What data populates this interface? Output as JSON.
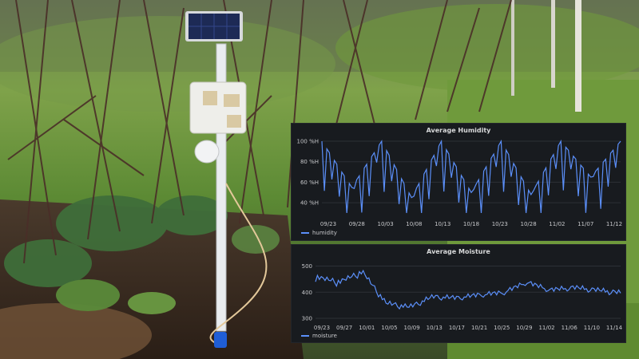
{
  "photo": {
    "subject": "solar-sensor-station",
    "colors": {
      "grass": "#6f9a3c",
      "soil": "#3b2c22",
      "pole": "#e9ecef",
      "panel": "#1d2a55",
      "enclosure": "#eeeeea",
      "plug": "#1f5ed6"
    }
  },
  "charts": {
    "humidity": {
      "title": "Average Humidity",
      "legend": "humidity",
      "color": "#5b8ff9",
      "y_ticks": [
        "100 %H",
        "80 %H",
        "60 %H",
        "40 %H"
      ],
      "x_ticks": [
        "09/23",
        "09/28",
        "10/03",
        "10/08",
        "10/13",
        "10/18",
        "10/23",
        "10/28",
        "11/02",
        "11/07",
        "11/12"
      ]
    },
    "moisture": {
      "title": "Average Moisture",
      "legend": "moisture",
      "color": "#5b8ff9",
      "y_ticks": [
        "500",
        "400",
        "300"
      ],
      "x_ticks": [
        "09/23",
        "09/27",
        "10/01",
        "10/05",
        "10/09",
        "10/13",
        "10/17",
        "10/21",
        "10/25",
        "10/29",
        "11/02",
        "11/06",
        "11/10",
        "11/14"
      ]
    }
  },
  "chart_data": [
    {
      "type": "line",
      "title": "Average Humidity",
      "series": [
        {
          "name": "humidity",
          "x": [
            "09/23",
            "09/28",
            "10/03",
            "10/08",
            "10/13",
            "10/18",
            "10/23",
            "10/28",
            "11/02",
            "11/07",
            "11/12"
          ],
          "values": [
            100,
            55,
            100,
            45,
            100,
            50,
            100,
            48,
            100,
            65,
            100
          ]
        }
      ],
      "ylim": [
        30,
        100
      ],
      "y_ticks": [
        "100 %H",
        "80 %H",
        "60 %H",
        "40 %H"
      ],
      "legend_position": "bottom-left"
    },
    {
      "type": "line",
      "title": "Average Moisture",
      "series": [
        {
          "name": "moisture",
          "x": [
            "09/23",
            "09/27",
            "10/01",
            "10/05",
            "10/09",
            "10/13",
            "10/17",
            "10/21",
            "10/25",
            "10/29",
            "11/02",
            "11/06",
            "11/10",
            "11/14"
          ],
          "values": [
            460,
            440,
            480,
            360,
            345,
            385,
            380,
            392,
            400,
            440,
            410,
            420,
            410,
            400
          ]
        }
      ],
      "ylim": [
        300,
        520
      ],
      "y_ticks": [
        "500",
        "400",
        "300"
      ],
      "legend_position": "bottom-left"
    }
  ]
}
